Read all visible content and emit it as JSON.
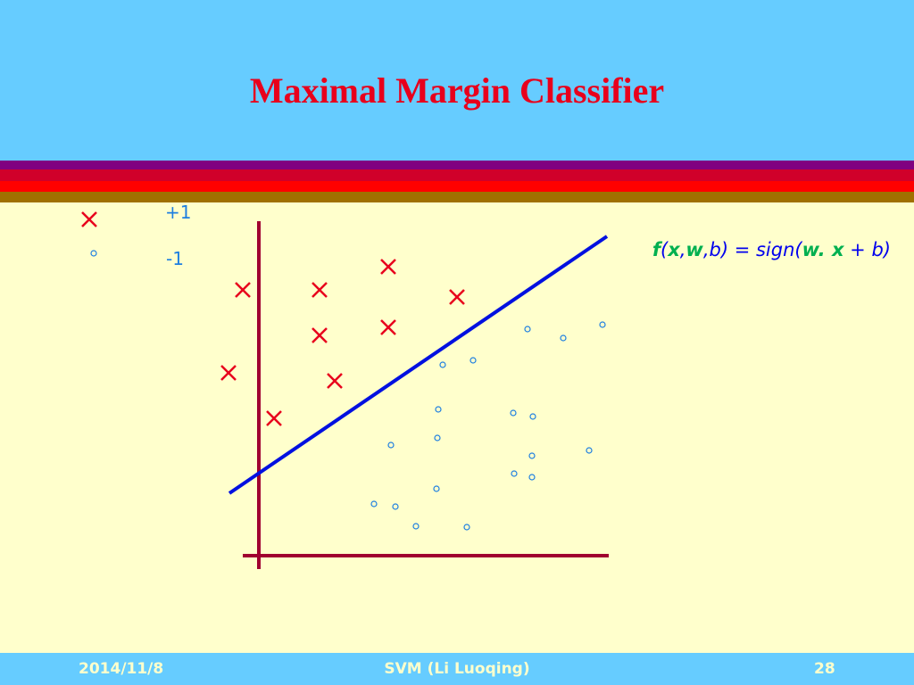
{
  "slide": {
    "title": "Maximal Margin Classifier",
    "legend": {
      "positive": "+1",
      "negative": "-1"
    },
    "formula": [
      "f",
      "(",
      "x",
      ",",
      "w",
      ",b) = sign(",
      "w. x",
      " + ",
      "b",
      ")"
    ],
    "footer": {
      "date": "2014/11/8",
      "center": "SVM (Li Luoqing)",
      "page": "28"
    }
  }
}
